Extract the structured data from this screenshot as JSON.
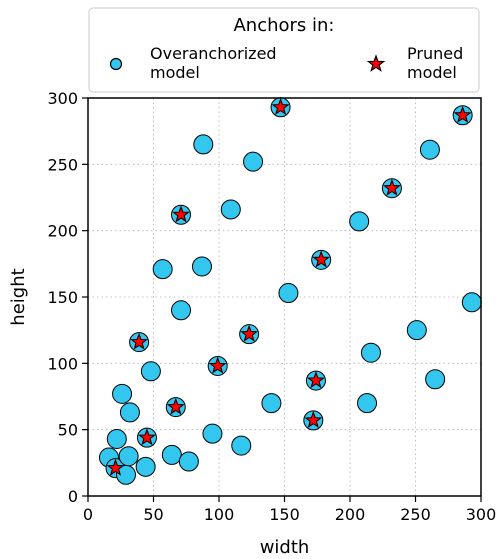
{
  "chart_data": {
    "type": "scatter",
    "title": "",
    "xlabel": "width",
    "ylabel": "height",
    "xlim": [
      0,
      300
    ],
    "ylim": [
      0,
      300
    ],
    "xticks": [
      0,
      50,
      100,
      150,
      200,
      250,
      300
    ],
    "yticks": [
      0,
      50,
      100,
      150,
      200,
      250,
      300
    ],
    "grid": true,
    "legend": {
      "title": "Anchors in:",
      "placement": "top, above plot",
      "entries": [
        {
          "line1": "Overanchorized",
          "line2": "model",
          "marker": "circle",
          "color": "#33c7f0"
        },
        {
          "line1": "Pruned",
          "line2": "model",
          "marker": "star",
          "color": "#ff0000"
        }
      ]
    },
    "series": [
      {
        "name": "Overanchorized model",
        "marker": "circle",
        "color": "#33c7f0",
        "points": [
          [
            16,
            29
          ],
          [
            21,
            21
          ],
          [
            22,
            43
          ],
          [
            26,
            77
          ],
          [
            29,
            16
          ],
          [
            31,
            30
          ],
          [
            32,
            63
          ],
          [
            39,
            116
          ],
          [
            44,
            22
          ],
          [
            45,
            44
          ],
          [
            48,
            94
          ],
          [
            57,
            171
          ],
          [
            64,
            31
          ],
          [
            67,
            67
          ],
          [
            71,
            140
          ],
          [
            71,
            212
          ],
          [
            77,
            26
          ],
          [
            87,
            173
          ],
          [
            88,
            265
          ],
          [
            95,
            47
          ],
          [
            99,
            98
          ],
          [
            109,
            216
          ],
          [
            117,
            38
          ],
          [
            123,
            122
          ],
          [
            126,
            252
          ],
          [
            140,
            70
          ],
          [
            147,
            293
          ],
          [
            153,
            153
          ],
          [
            172,
            57
          ],
          [
            174,
            87
          ],
          [
            178,
            178
          ],
          [
            207,
            207
          ],
          [
            213,
            70
          ],
          [
            216,
            108
          ],
          [
            232,
            232
          ],
          [
            251,
            125
          ],
          [
            261,
            261
          ],
          [
            265,
            88
          ],
          [
            286,
            287
          ],
          [
            293,
            146
          ]
        ]
      },
      {
        "name": "Pruned model",
        "marker": "star",
        "color": "#ff0000",
        "points": [
          [
            21,
            21
          ],
          [
            39,
            116
          ],
          [
            45,
            44
          ],
          [
            67,
            67
          ],
          [
            71,
            212
          ],
          [
            99,
            98
          ],
          [
            123,
            122
          ],
          [
            147,
            293
          ],
          [
            172,
            57
          ],
          [
            174,
            87
          ],
          [
            178,
            178
          ],
          [
            232,
            232
          ],
          [
            286,
            287
          ]
        ]
      }
    ]
  }
}
